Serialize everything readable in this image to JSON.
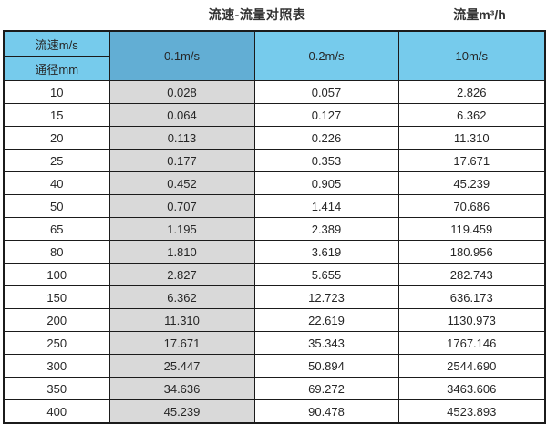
{
  "page": {
    "title": "流速-流量对照表",
    "unit_label": "流量m³/h"
  },
  "colors": {
    "header_light_blue": "#76cbec",
    "header_dark_blue": "#62aed4",
    "highlight_column_gray": "#d9d9d9",
    "border": "#1b1b1b",
    "text": "#262626"
  },
  "table": {
    "corner": {
      "top_label": "流速m/s",
      "bottom_label": "通径mm"
    },
    "columns": [
      "0.1m/s",
      "0.2m/s",
      "10m/s"
    ],
    "rows": [
      {
        "dn": "10",
        "v1": "0.028",
        "v2": "0.057",
        "v3": "2.826"
      },
      {
        "dn": "15",
        "v1": "0.064",
        "v2": "0.127",
        "v3": "6.362"
      },
      {
        "dn": "20",
        "v1": "0.113",
        "v2": "0.226",
        "v3": "11.310"
      },
      {
        "dn": "25",
        "v1": "0.177",
        "v2": "0.353",
        "v3": "17.671"
      },
      {
        "dn": "40",
        "v1": "0.452",
        "v2": "0.905",
        "v3": "45.239"
      },
      {
        "dn": "50",
        "v1": "0.707",
        "v2": "1.414",
        "v3": "70.686"
      },
      {
        "dn": "65",
        "v1": "1.195",
        "v2": "2.389",
        "v3": "119.459"
      },
      {
        "dn": "80",
        "v1": "1.810",
        "v2": "3.619",
        "v3": "180.956"
      },
      {
        "dn": "100",
        "v1": "2.827",
        "v2": "5.655",
        "v3": "282.743"
      },
      {
        "dn": "150",
        "v1": "6.362",
        "v2": "12.723",
        "v3": "636.173"
      },
      {
        "dn": "200",
        "v1": "11.310",
        "v2": "22.619",
        "v3": "1130.973"
      },
      {
        "dn": "250",
        "v1": "17.671",
        "v2": "35.343",
        "v3": "1767.146"
      },
      {
        "dn": "300",
        "v1": "25.447",
        "v2": "50.894",
        "v3": "2544.690"
      },
      {
        "dn": "350",
        "v1": "34.636",
        "v2": "69.272",
        "v3": "3463.606"
      },
      {
        "dn": "400",
        "v1": "45.239",
        "v2": "90.478",
        "v3": "4523.893"
      }
    ]
  }
}
